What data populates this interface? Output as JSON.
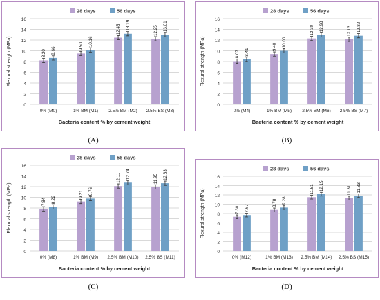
{
  "colors": {
    "series_28": "#b7a1cf",
    "series_56": "#6fa0c6",
    "grid": "#d9d9d9",
    "border": "#b58bc2"
  },
  "chart_data": [
    {
      "id": "A",
      "type": "bar",
      "panel_label": "(A)",
      "xlabel": "Bacteria content % by cement weight",
      "ylabel": "Flexural  strength (MPa)",
      "ylim": [
        0,
        16
      ],
      "yticks": [
        0,
        2,
        4,
        6,
        8,
        10,
        12,
        14,
        16
      ],
      "grid": true,
      "legend": "top",
      "categories": [
        "0% (M0)",
        "1% BM (M1)",
        "2.5% BM (M2)",
        "2.5% BS (M3)"
      ],
      "series": [
        {
          "name": "28 days",
          "values": [
            8.2,
            9.5,
            12.45,
            12.25
          ],
          "labels": [
            "8.20",
            "9.50",
            "12.45",
            "12.25"
          ]
        },
        {
          "name": "56 days",
          "values": [
            8.66,
            10.16,
            13.19,
            13.01
          ],
          "labels": [
            "8.66",
            "10.16",
            "13.19",
            "13.01"
          ]
        }
      ]
    },
    {
      "id": "B",
      "type": "bar",
      "panel_label": "(B)",
      "xlabel": "Bacteria content % by cement weight",
      "ylabel": "Flexural  strength (MPa)",
      "ylim": [
        0,
        16
      ],
      "yticks": [
        0,
        2,
        4,
        6,
        8,
        10,
        12,
        14,
        16
      ],
      "grid": true,
      "legend": "top",
      "categories": [
        "0% (M4)",
        "1% BM (M5)",
        "2.5% BM (M6)",
        "2.5% BS (M7)"
      ],
      "series": [
        {
          "name": "28 days",
          "values": [
            8.07,
            9.4,
            12.3,
            12.13
          ],
          "labels": [
            "8.07",
            "9.40",
            "12.30",
            "12.13"
          ]
        },
        {
          "name": "56 days",
          "values": [
            8.41,
            10.0,
            12.98,
            12.82
          ],
          "labels": [
            "8.41",
            "10.00",
            "12.98",
            "12.82"
          ]
        }
      ]
    },
    {
      "id": "C",
      "type": "bar",
      "panel_label": "(C)",
      "xlabel": "Bacteria content % by cement weight",
      "ylabel": "Flexural  strength (MPa)",
      "ylim": [
        0,
        16
      ],
      "yticks": [
        0,
        2,
        4,
        6,
        8,
        10,
        12,
        14,
        16
      ],
      "grid": true,
      "legend": "top",
      "categories": [
        "0% (M8)",
        "1% BM (M9)",
        "2.5% BM (M10)",
        "2.5% BS (M11)"
      ],
      "series": [
        {
          "name": "28 days",
          "values": [
            7.84,
            9.21,
            12.11,
            11.95
          ],
          "labels": [
            "7.84",
            "9.21",
            "12.11",
            "11.95"
          ]
        },
        {
          "name": "56 days",
          "values": [
            8.22,
            9.76,
            12.74,
            12.63
          ],
          "labels": [
            "8.22",
            "9.76",
            "12.74",
            "12.63"
          ]
        }
      ]
    },
    {
      "id": "D",
      "type": "bar",
      "panel_label": "(D)",
      "xlabel": "Bacteria content % by cement weight",
      "ylabel": "Flexural  strength (MPa)",
      "ylim": [
        0,
        16
      ],
      "yticks": [
        0,
        2,
        4,
        6,
        8,
        10,
        12,
        14,
        16
      ],
      "grid": true,
      "legend": "top",
      "categories": [
        "0% (M12)",
        "1% BM (M13)",
        "2.5% BM (M14)",
        "2.5% BS (M15)"
      ],
      "series": [
        {
          "name": "28 days",
          "values": [
            7.3,
            8.78,
            11.51,
            11.31
          ],
          "labels": [
            "7.30",
            "8.78",
            "11.51",
            "11.31"
          ]
        },
        {
          "name": "56 days",
          "values": [
            7.67,
            9.28,
            12.15,
            11.83
          ],
          "labels": [
            "7.67",
            "9.28",
            "12.15",
            "11.83"
          ]
        }
      ]
    }
  ]
}
